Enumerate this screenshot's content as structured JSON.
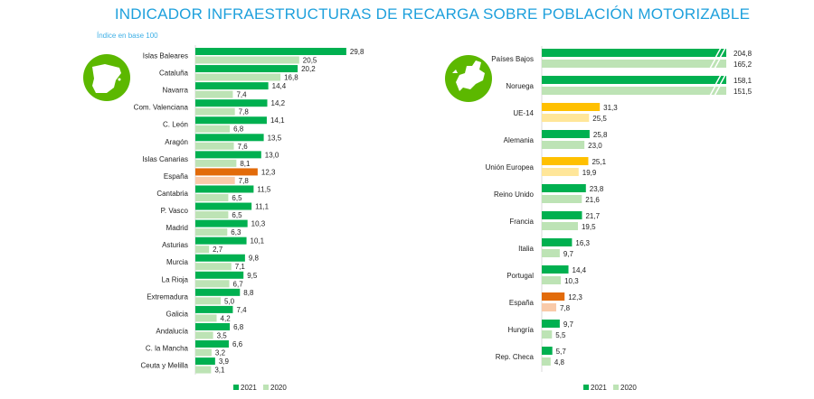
{
  "title": "INDICADOR INFRAESTRUCTURAS DE RECARGA SOBRE POBLACIÓN MOTORIZABLE",
  "colors": {
    "default": {
      "2021": "#00b050",
      "2020": "#bde3b5"
    },
    "spain": {
      "2021": "#e26b0a",
      "2020": "#f9caa9"
    },
    "eu": {
      "2021": "#ffc000",
      "2020": "#ffe699"
    },
    "icon": "#5cb800"
  },
  "chart_data": [
    {
      "type": "bar",
      "orientation": "horizontal",
      "subtitle": "Índice en base 100",
      "icon": "spain-map-icon",
      "legend": [
        "2021",
        "2020"
      ],
      "legend_placement": "bottom",
      "categories": [
        "Islas Baleares",
        "Cataluña",
        "Navarra",
        "Com. Valenciana",
        "C. León",
        "Aragón",
        "Islas Canarias",
        "España",
        "Cantabria",
        "P. Vasco",
        "Madrid",
        "Asturias",
        "Murcia",
        "La Rioja",
        "Extremadura",
        "Galicia",
        "Andalucía",
        "C. la Mancha",
        "Ceuta y Melilla"
      ],
      "groups": [
        "default",
        "default",
        "default",
        "default",
        "default",
        "default",
        "default",
        "spain",
        "default",
        "default",
        "default",
        "default",
        "default",
        "default",
        "default",
        "default",
        "default",
        "default",
        "default"
      ],
      "series": [
        {
          "name": "2021",
          "values": [
            29.8,
            20.2,
            14.4,
            14.2,
            14.1,
            13.5,
            13.0,
            12.3,
            11.5,
            11.1,
            10.3,
            10.1,
            9.8,
            9.5,
            8.8,
            7.4,
            6.8,
            6.6,
            3.9
          ],
          "labels": [
            "29,8",
            "20,2",
            "14,4",
            "14,2",
            "14,1",
            "13,5",
            "13,0",
            "12,3",
            "11,5",
            "11,1",
            "10,3",
            "10,1",
            "9,8",
            "9,5",
            "8,8",
            "7,4",
            "6,8",
            "6,6",
            "3,9"
          ]
        },
        {
          "name": "2020",
          "values": [
            20.5,
            16.8,
            7.4,
            7.8,
            6.8,
            7.6,
            8.1,
            7.8,
            6.5,
            6.5,
            6.3,
            2.7,
            7.1,
            6.7,
            5.0,
            4.2,
            3.5,
            3.2,
            3.1
          ],
          "labels": [
            "20,5",
            "16,8",
            "7,4",
            "7,8",
            "6,8",
            "7,6",
            "8,1",
            "7,8",
            "6,5",
            "6,5",
            "6,3",
            "2,7",
            "7,1",
            "6,7",
            "5,0",
            "4,2",
            "3,5",
            "3,2",
            "3,1"
          ]
        }
      ]
    },
    {
      "type": "bar",
      "orientation": "horizontal",
      "icon": "europe-map-icon",
      "legend": [
        "2021",
        "2020"
      ],
      "legend_placement": "bottom",
      "axis_break": [
        "Países Bajos",
        "Noruega"
      ],
      "categories": [
        "Países Bajos",
        "Noruega",
        "UE-14",
        "Alemania",
        "Unión Europea",
        "Reino Unido",
        "Francia",
        "Italia",
        "Portugal",
        "España",
        "Hungría",
        "Rep. Checa"
      ],
      "groups": [
        "default",
        "default",
        "eu",
        "default",
        "eu",
        "default",
        "default",
        "default",
        "default",
        "spain",
        "default",
        "default"
      ],
      "series": [
        {
          "name": "2021",
          "values": [
            204.8,
            158.1,
            31.3,
            25.8,
            25.1,
            23.8,
            21.7,
            16.3,
            14.4,
            12.3,
            9.7,
            5.7
          ],
          "labels": [
            "204,8",
            "158,1",
            "31,3",
            "25,8",
            "25,1",
            "23,8",
            "21,7",
            "16,3",
            "14,4",
            "12,3",
            "9,7",
            "5,7"
          ]
        },
        {
          "name": "2020",
          "values": [
            165.2,
            151.5,
            25.5,
            23.0,
            19.9,
            21.6,
            19.5,
            9.7,
            10.3,
            7.8,
            5.5,
            4.8
          ],
          "labels": [
            "165,2",
            "151,5",
            "25,5",
            "23,0",
            "19,9",
            "21,6",
            "19,5",
            "9,7",
            "10,3",
            "7,8",
            "5,5",
            "4,8"
          ]
        }
      ]
    }
  ]
}
